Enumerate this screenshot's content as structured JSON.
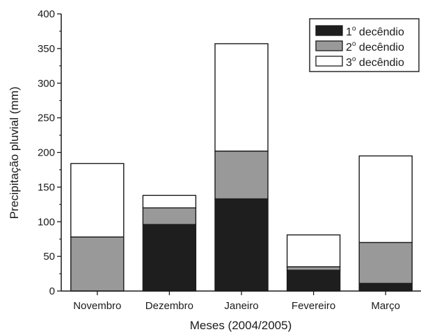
{
  "chart_data": {
    "type": "bar",
    "stacked": true,
    "categories": [
      "Novembro",
      "Dezembro",
      "Janeiro",
      "Fevereiro",
      "Março"
    ],
    "series": [
      {
        "name": "1º decêndio",
        "label_num": "1",
        "label_sup": "o",
        "label_text": "decêndio",
        "color": "#1e1e1e",
        "values": [
          0,
          96,
          133,
          30,
          11
        ]
      },
      {
        "name": "2º decêndio",
        "label_num": "2",
        "label_sup": "o",
        "label_text": "decêndio",
        "color": "#999999",
        "values": [
          78,
          24,
          69,
          5,
          59
        ]
      },
      {
        "name": "3º decêndio",
        "label_num": "3",
        "label_sup": "o",
        "label_text": "decêndio",
        "color": "#ffffff",
        "values": [
          106,
          18,
          155,
          46,
          125
        ]
      }
    ],
    "xlabel": "Meses (2004/2005)",
    "ylabel": "Precipitação pluvial (mm)",
    "ylim": [
      0,
      400
    ],
    "yticks": [
      0,
      50,
      100,
      150,
      200,
      250,
      300,
      350,
      400
    ],
    "grid": false,
    "legend_position": "top-right"
  }
}
